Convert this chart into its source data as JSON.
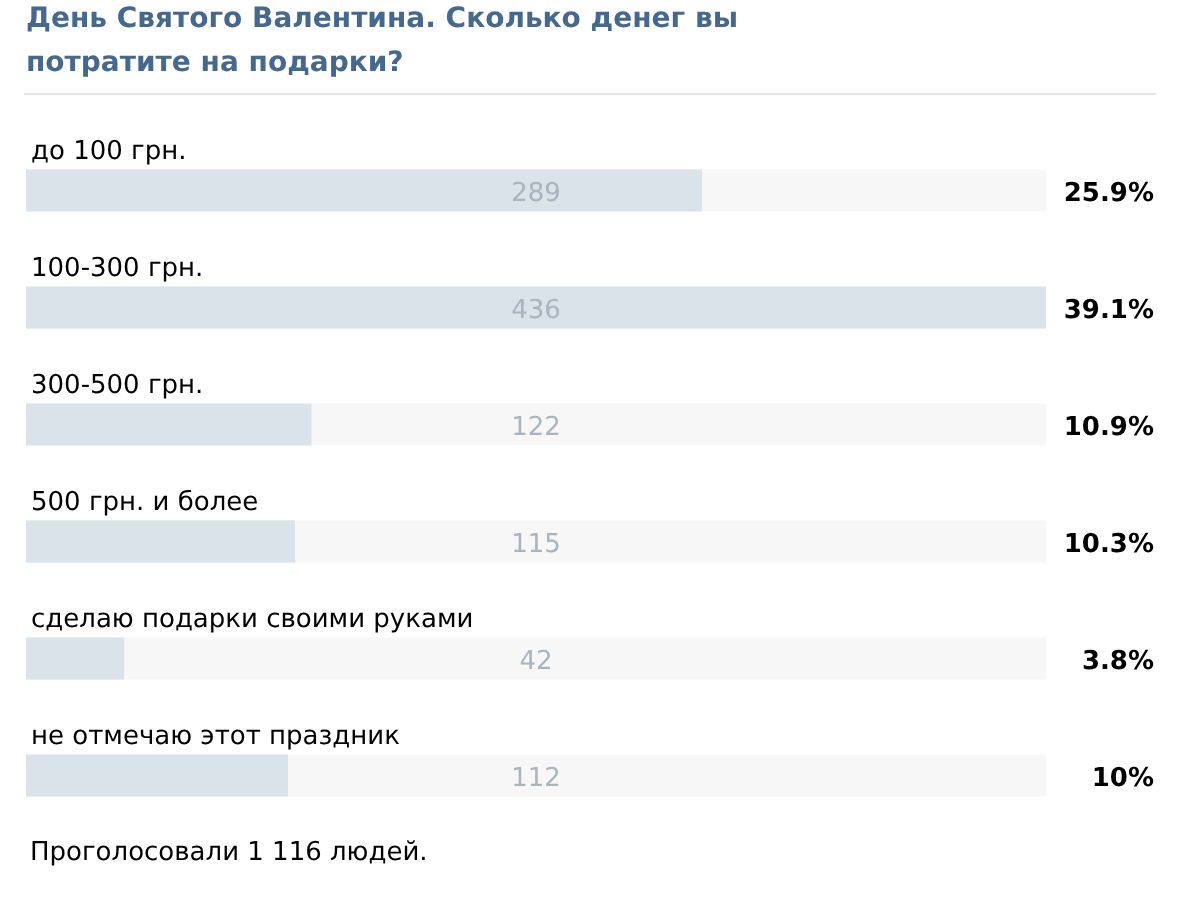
{
  "chart_data": {
    "type": "bar",
    "orientation": "horizontal",
    "title": "День Святого Валентина. Сколько денег вы потратите на подарки?",
    "categories": [
      "до 100 грн.",
      "100-300 грн.",
      "300-500 грн.",
      "500 грн. и более",
      "сделаю подарки своими руками",
      "не отмечаю этот праздник"
    ],
    "values": [
      289,
      436,
      122,
      115,
      42,
      112
    ],
    "color": "#dae2ea",
    "data_labels": true,
    "annotations": [
      "25.9%",
      "39.1%",
      "10.9%",
      "10.3%",
      "3.8%",
      "10%",
      "Проголосовали 1 116 людей."
    ]
  }
}
